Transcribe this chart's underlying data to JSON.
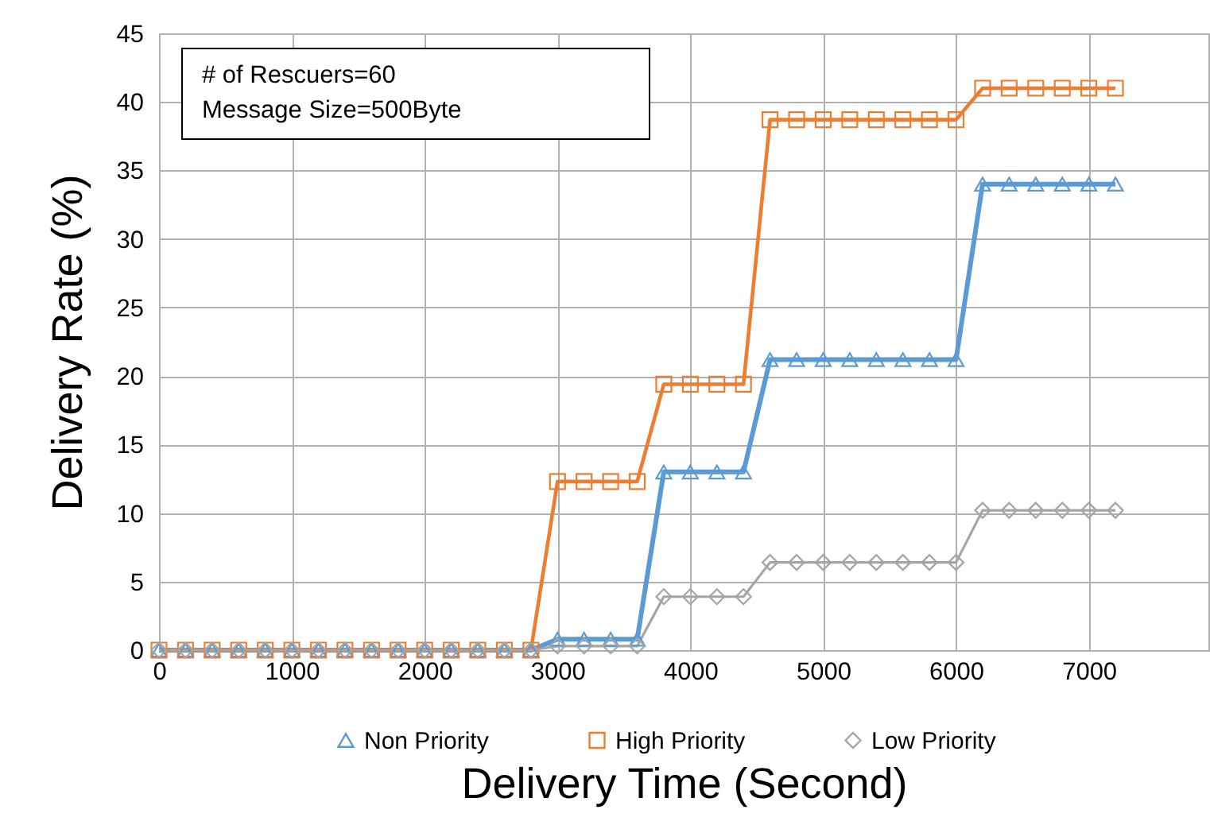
{
  "chart_data": {
    "type": "line",
    "xlabel": "Delivery Time (Second)",
    "ylabel": "Delivery Rate (%)",
    "annotations": [
      "# of Rescuers=60",
      "Message Size=500Byte"
    ],
    "x": [
      0,
      200,
      400,
      600,
      800,
      1000,
      1200,
      1400,
      1600,
      1800,
      2000,
      2200,
      2400,
      2600,
      2800,
      3000,
      3200,
      3400,
      3600,
      3800,
      4000,
      4200,
      4400,
      4600,
      4800,
      5000,
      5200,
      5400,
      5600,
      5800,
      6000,
      6200,
      6400,
      6600,
      6800,
      7000,
      7200
    ],
    "series": [
      {
        "name": "Non Priority",
        "color": "#5b9bd5",
        "marker": "triangle",
        "values": [
          0,
          0,
          0,
          0,
          0,
          0,
          0,
          0,
          0,
          0,
          0,
          0,
          0,
          0,
          0,
          0.8,
          0.8,
          0.8,
          0.8,
          13,
          13,
          13,
          13,
          21.2,
          21.2,
          21.2,
          21.2,
          21.2,
          21.2,
          21.2,
          21.2,
          34,
          34,
          34,
          34,
          34,
          34
        ]
      },
      {
        "name": "High Priority",
        "color": "#ed7d31",
        "marker": "square",
        "values": [
          0,
          0,
          0,
          0,
          0,
          0,
          0,
          0,
          0,
          0,
          0,
          0,
          0,
          0,
          0,
          12.3,
          12.3,
          12.3,
          12.3,
          19.4,
          19.4,
          19.4,
          19.4,
          38.7,
          38.7,
          38.7,
          38.7,
          38.7,
          38.7,
          38.7,
          38.7,
          41,
          41,
          41,
          41,
          41,
          41
        ]
      },
      {
        "name": "Low Priority",
        "color": "#a5a5a5",
        "marker": "diamond",
        "values": [
          0,
          0,
          0,
          0,
          0,
          0,
          0,
          0,
          0,
          0,
          0,
          0,
          0,
          0,
          0,
          0.3,
          0.3,
          0.3,
          0.3,
          3.9,
          3.9,
          3.9,
          3.9,
          6.4,
          6.4,
          6.4,
          6.4,
          6.4,
          6.4,
          6.4,
          6.4,
          10.2,
          10.2,
          10.2,
          10.2,
          10.2,
          10.2
        ]
      }
    ],
    "xlim": [
      0,
      7900
    ],
    "xticks": [
      0,
      1000,
      2000,
      3000,
      4000,
      5000,
      6000,
      7000
    ],
    "ylim": [
      0,
      45
    ],
    "yticks": [
      0,
      5,
      10,
      15,
      20,
      25,
      30,
      35,
      40,
      45
    ],
    "grid": true,
    "legend": "bottom"
  }
}
